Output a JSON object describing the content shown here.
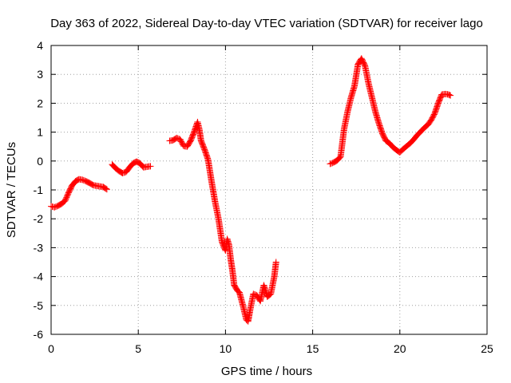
{
  "chart_data": {
    "type": "scatter",
    "title": "Day 363 of 2022, Sidereal Day-to-day VTEC variation (SDTVAR) for receiver lago",
    "xlabel": "GPS time / hours",
    "ylabel": "SDTVAR / TECUs",
    "xlim": [
      0,
      25
    ],
    "ylim": [
      -6,
      4
    ],
    "xticks": [
      0,
      5,
      10,
      15,
      20,
      25
    ],
    "yticks": [
      -6,
      -5,
      -4,
      -3,
      -2,
      -1,
      0,
      1,
      2,
      3,
      4
    ],
    "grid": true,
    "legend": "none",
    "marker": "plus",
    "color": "#ff0000",
    "segments": [
      {
        "x": [
          0.0,
          0.2,
          0.4,
          0.6,
          0.8,
          1.0,
          1.2,
          1.4,
          1.6,
          1.8,
          2.0,
          2.2,
          2.4,
          2.6,
          2.8,
          3.0,
          3.2
        ],
        "y": [
          -1.57,
          -1.6,
          -1.55,
          -1.48,
          -1.38,
          -1.1,
          -0.85,
          -0.7,
          -0.63,
          -0.65,
          -0.7,
          -0.76,
          -0.83,
          -0.86,
          -0.88,
          -0.9,
          -0.98
        ]
      },
      {
        "x": [
          3.5,
          3.7,
          3.9,
          4.1,
          4.3,
          4.5,
          4.7,
          4.9,
          5.1,
          5.3,
          5.5,
          5.7
        ],
        "y": [
          -0.12,
          -0.25,
          -0.35,
          -0.42,
          -0.38,
          -0.22,
          -0.08,
          -0.02,
          -0.08,
          -0.22,
          -0.2,
          -0.18
        ]
      },
      {
        "x": [
          6.8,
          7.0,
          7.2,
          7.4,
          7.6,
          7.8,
          8.0,
          8.2,
          8.4,
          8.5,
          8.6,
          8.8,
          9.0,
          9.2,
          9.4,
          9.6,
          9.8,
          10.0,
          10.1,
          10.2,
          10.3,
          10.4,
          10.5,
          10.6,
          10.7,
          10.8,
          11.0,
          11.2,
          11.3,
          11.4,
          11.6,
          11.8,
          12.0,
          12.2,
          12.4,
          12.6,
          12.8,
          12.9
        ],
        "y": [
          0.7,
          0.72,
          0.8,
          0.75,
          0.52,
          0.5,
          0.7,
          1.0,
          1.35,
          1.1,
          0.7,
          0.4,
          0.05,
          -0.7,
          -1.4,
          -2.0,
          -2.8,
          -3.1,
          -2.7,
          -2.9,
          -3.4,
          -3.8,
          -4.3,
          -4.4,
          -4.5,
          -4.55,
          -5.0,
          -5.5,
          -5.55,
          -5.2,
          -4.6,
          -4.65,
          -4.85,
          -4.3,
          -4.7,
          -4.6,
          -4.0,
          -3.5
        ]
      },
      {
        "x": [
          16.0,
          16.2,
          16.4,
          16.6,
          16.8,
          17.0,
          17.2,
          17.4,
          17.6,
          17.7,
          17.8,
          18.0,
          18.2,
          18.4,
          18.6,
          18.8,
          19.0,
          19.2,
          19.4,
          19.6,
          19.8,
          20.0,
          20.2,
          20.4,
          20.6,
          20.8,
          21.0,
          21.2,
          21.4,
          21.6,
          21.8,
          22.0,
          22.2,
          22.4,
          22.6,
          22.8,
          22.9
        ],
        "y": [
          -0.1,
          -0.05,
          0.02,
          0.15,
          1.1,
          1.7,
          2.2,
          2.6,
          3.35,
          3.45,
          3.55,
          3.3,
          2.7,
          2.2,
          1.7,
          1.3,
          0.95,
          0.7,
          0.62,
          0.48,
          0.38,
          0.3,
          0.42,
          0.52,
          0.62,
          0.75,
          0.9,
          1.02,
          1.15,
          1.25,
          1.42,
          1.65,
          2.0,
          2.3,
          2.32,
          2.3,
          2.27
        ]
      }
    ]
  }
}
